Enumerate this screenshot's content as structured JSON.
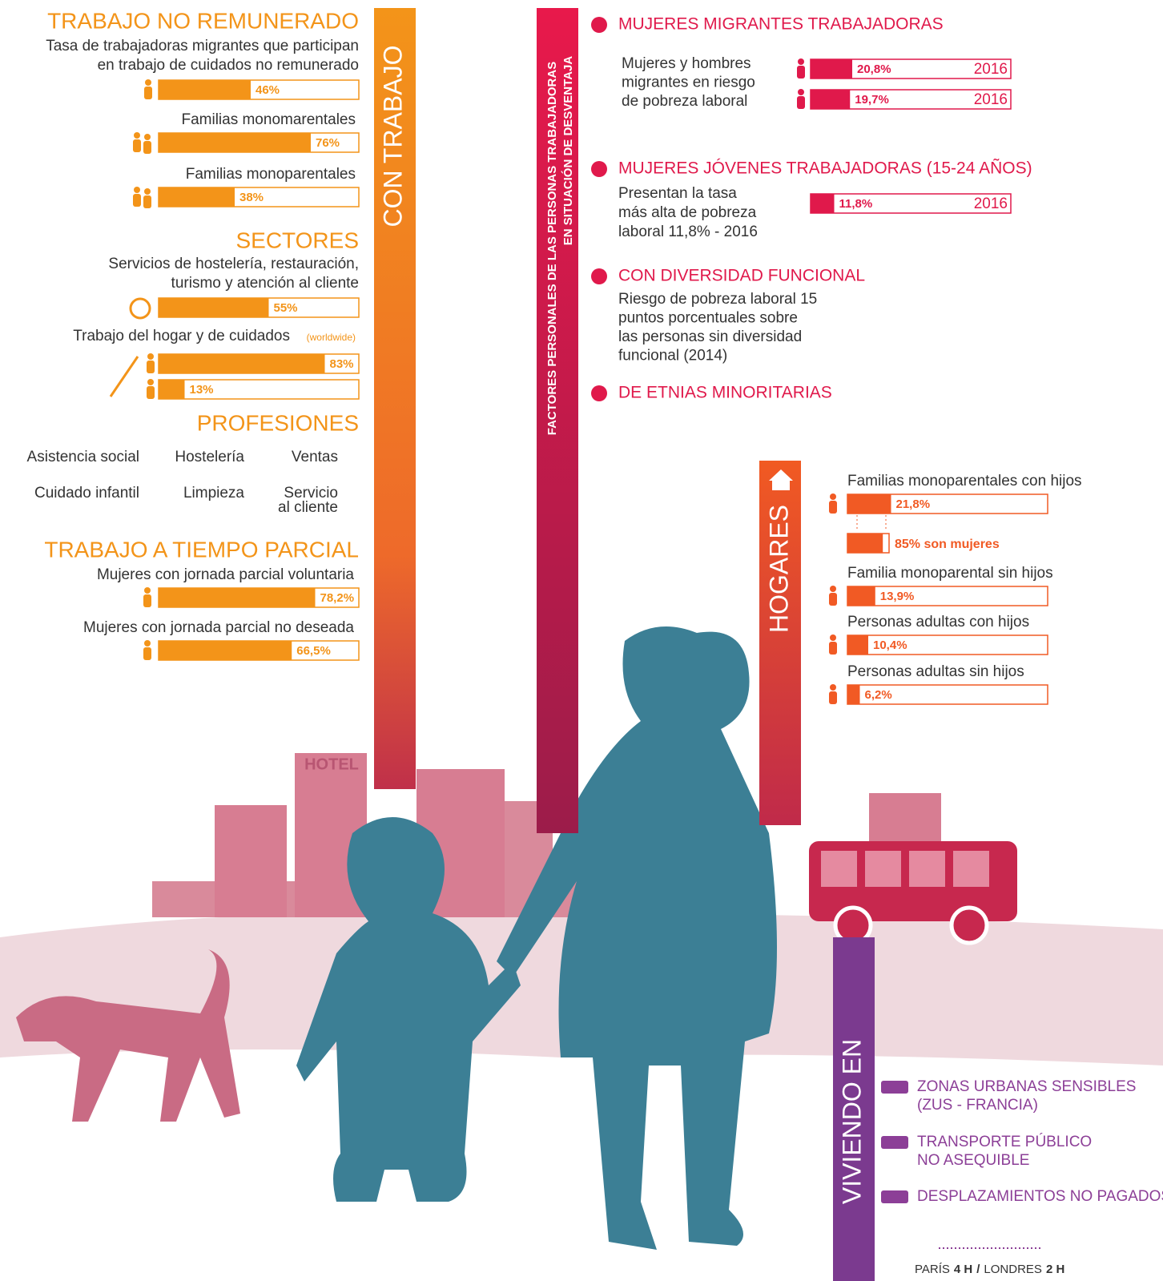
{
  "trabajo": {
    "heading": "CON TRABAJO",
    "no_remunerado": {
      "title": "TRABAJO NO REMUNERADO",
      "lines": [
        "Tasa de trabajadoras migrantes que participan",
        "en trabajo de cuidados no remunerado"
      ],
      "value": 46,
      "label": "46%",
      "groups": [
        {
          "text": "Familias monomarentales",
          "value": 76,
          "label": "76%"
        },
        {
          "text": "Familias monoparentales",
          "value": 38,
          "label": "38%"
        }
      ]
    },
    "sectores": {
      "title": "SECTORES",
      "lines": [
        "Servicios de hostelería, restauración,",
        "turismo y atención al cliente"
      ],
      "value": 55,
      "label": "55%",
      "hogar": {
        "text": "Trabajo del hogar y de cuidados",
        "note": "(worldwide)",
        "bars": [
          {
            "value": 83,
            "label": "83%"
          },
          {
            "value": 13,
            "label": "13%"
          }
        ]
      }
    },
    "profesiones": {
      "title": "PROFESIONES",
      "items": [
        [
          "Asistencia social"
        ],
        [
          "Hostelería"
        ],
        [
          "Ventas"
        ],
        [
          "Cuidado infantil"
        ],
        [
          "Limpieza"
        ],
        [
          "Servicio",
          "al cliente"
        ]
      ]
    },
    "parcial": {
      "title": "TRABAJO A TIEMPO PARCIAL",
      "bars": [
        {
          "text": "Mujeres con jornada parcial voluntaria",
          "value": 78.2,
          "label": "78,2%"
        },
        {
          "text": "Mujeres con jornada parcial no deseada",
          "value": 66.5,
          "label": "66,5%"
        }
      ]
    }
  },
  "factores": {
    "heading": [
      "FACTORES PERSONALES DE LAS PERSONAS TRABAJADORAS",
      "EN SITUACIÓN DE DESVENTAJA"
    ],
    "migrantes": {
      "title": "MUJERES MIGRANTES TRABAJADORAS",
      "lines": [
        "Mujeres y hombres",
        "migrantes en riesgo",
        "de pobreza laboral"
      ],
      "bars": [
        {
          "value": 20.8,
          "label": "20,8%",
          "year": "2016"
        },
        {
          "value": 19.7,
          "label": "19,7%",
          "year": "2016"
        }
      ]
    },
    "jovenes": {
      "title": "MUJERES JÓVENES TRABAJADORAS (15-24 AÑOS)",
      "lines": [
        "Presentan la tasa",
        "más alta de pobreza",
        "laboral 11,8% - 2016"
      ],
      "value": 11.8,
      "label": "11,8%",
      "year": "2016"
    },
    "diversidad": {
      "title": "CON DIVERSIDAD FUNCIONAL",
      "lines": [
        "Riesgo de pobreza laboral 15",
        "puntos porcentuales sobre",
        "las personas sin diversidad",
        "funcional (2014)"
      ]
    },
    "etnias": {
      "title": "DE ETNIAS MINORITARIAS"
    }
  },
  "hogares": {
    "heading": "HOGARES",
    "items": [
      {
        "text": "Familias monoparentales con hijos",
        "value": 21.8,
        "label": "21,8%"
      },
      {
        "text": "Familia monoparental sin hijos",
        "value": 13.9,
        "label": "13,9%"
      },
      {
        "text": "Personas adultas con hijos",
        "value": 10.4,
        "label": "10,4%"
      },
      {
        "text": "Personas adultas sin hijos",
        "value": 6.2,
        "label": "6,2%"
      }
    ],
    "mujeres": {
      "value": 85,
      "label": "85% son mujeres"
    }
  },
  "vivienda": {
    "heading": "VIVIENDO EN",
    "items": [
      [
        "ZONAS URBANAS SENSIBLES",
        "(ZUS - FRANCIA)"
      ],
      [
        "TRANSPORTE PÚBLICO",
        "NO ASEQUIBLE"
      ],
      [
        "DESPLAZAMIENTOS NO PAGADOS"
      ]
    ],
    "commute": {
      "paris": "PARÍS",
      "paris_time": "4 H",
      "sep": "/",
      "londres": "LONDRES",
      "londres_time": "2 H"
    }
  },
  "illustration": {
    "hotel_sign": "HOTEL"
  }
}
